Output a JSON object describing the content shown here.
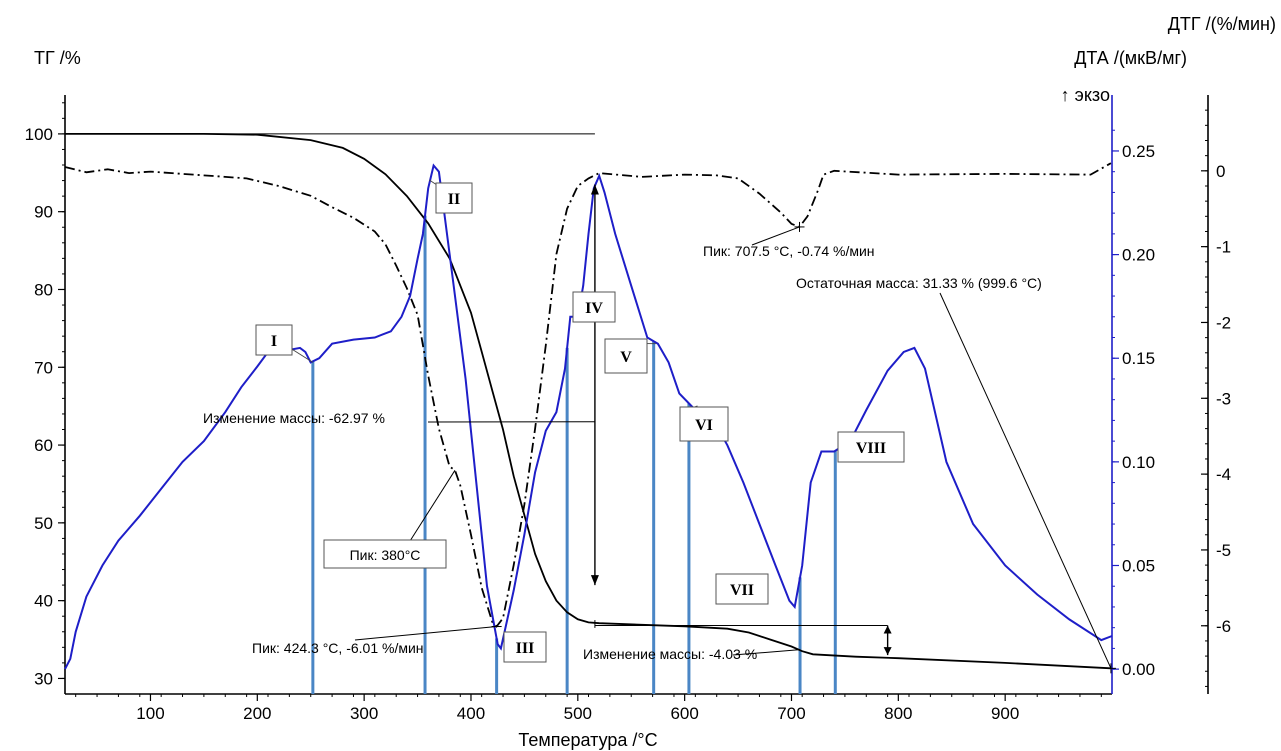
{
  "chart_data": {
    "type": "line",
    "xlabel": "Температура /°C",
    "x_ticks": [
      100,
      200,
      300,
      400,
      500,
      600,
      700,
      800,
      900
    ],
    "xlim": [
      20,
      1000
    ],
    "axes": {
      "tg": {
        "label": "ТГ /%",
        "ticks": [
          30,
          40,
          50,
          60,
          70,
          80,
          90,
          100
        ],
        "range": [
          28,
          105
        ]
      },
      "dta": {
        "label": "ДТА /(мкВ/мг)",
        "exo_label": "↑ экзо",
        "ticks": [
          "0.00",
          "0.05",
          "0.10",
          "0.15",
          "0.20",
          "0.25"
        ],
        "range": [
          -0.012,
          0.277
        ]
      },
      "dtg": {
        "label": "ДТГ /(%/мин)",
        "ticks": [
          0,
          -1,
          -2,
          -3,
          -4,
          -5,
          -6
        ],
        "range": [
          -6.9,
          1.0
        ]
      }
    },
    "colors": {
      "tg": "#000000",
      "dtg": "#000000",
      "dta": "#1e1ec8",
      "markers": "#4a86c5"
    },
    "series": [
      {
        "key": "tg",
        "style": "solid",
        "points": [
          [
            20,
            100
          ],
          [
            150,
            100
          ],
          [
            200,
            99.9
          ],
          [
            250,
            99.2
          ],
          [
            280,
            98.2
          ],
          [
            300,
            96.8
          ],
          [
            320,
            94.8
          ],
          [
            340,
            92
          ],
          [
            360,
            88.5
          ],
          [
            380,
            84
          ],
          [
            400,
            77
          ],
          [
            410,
            72
          ],
          [
            420,
            67
          ],
          [
            430,
            62
          ],
          [
            440,
            56
          ],
          [
            450,
            51
          ],
          [
            460,
            46
          ],
          [
            470,
            42.5
          ],
          [
            480,
            40
          ],
          [
            490,
            38.5
          ],
          [
            500,
            37.6
          ],
          [
            510,
            37.2
          ],
          [
            520,
            37.1
          ],
          [
            560,
            36.9
          ],
          [
            600,
            36.7
          ],
          [
            640,
            36.4
          ],
          [
            660,
            35.9
          ],
          [
            680,
            35.0
          ],
          [
            700,
            34.1
          ],
          [
            710,
            33.5
          ],
          [
            720,
            33.1
          ],
          [
            760,
            32.8
          ],
          [
            800,
            32.6
          ],
          [
            900,
            32.0
          ],
          [
            999,
            31.3
          ]
        ]
      },
      {
        "key": "dtg",
        "style": "dashdot",
        "points": [
          [
            20,
            0.05
          ],
          [
            40,
            -0.02
          ],
          [
            60,
            0.02
          ],
          [
            80,
            -0.03
          ],
          [
            100,
            -0.01
          ],
          [
            130,
            -0.04
          ],
          [
            160,
            -0.07
          ],
          [
            190,
            -0.1
          ],
          [
            220,
            -0.2
          ],
          [
            250,
            -0.33
          ],
          [
            270,
            -0.48
          ],
          [
            290,
            -0.62
          ],
          [
            310,
            -0.8
          ],
          [
            320,
            -0.97
          ],
          [
            330,
            -1.25
          ],
          [
            340,
            -1.55
          ],
          [
            350,
            -1.9
          ],
          [
            360,
            -2.7
          ],
          [
            370,
            -3.4
          ],
          [
            380,
            -3.9
          ],
          [
            385,
            -3.95
          ],
          [
            390,
            -4.15
          ],
          [
            400,
            -4.8
          ],
          [
            410,
            -5.5
          ],
          [
            420,
            -5.95
          ],
          [
            424,
            -6.01
          ],
          [
            430,
            -5.9
          ],
          [
            440,
            -5.2
          ],
          [
            450,
            -4.4
          ],
          [
            460,
            -3.4
          ],
          [
            470,
            -2.3
          ],
          [
            480,
            -1.1
          ],
          [
            490,
            -0.5
          ],
          [
            500,
            -0.2
          ],
          [
            510,
            -0.1
          ],
          [
            520,
            -0.03
          ],
          [
            560,
            -0.08
          ],
          [
            600,
            -0.05
          ],
          [
            630,
            -0.06
          ],
          [
            650,
            -0.1
          ],
          [
            670,
            -0.3
          ],
          [
            690,
            -0.55
          ],
          [
            700,
            -0.7
          ],
          [
            707.5,
            -0.74
          ],
          [
            715,
            -0.6
          ],
          [
            725,
            -0.25
          ],
          [
            730,
            -0.05
          ],
          [
            740,
            0.0
          ],
          [
            800,
            -0.05
          ],
          [
            900,
            -0.04
          ],
          [
            980,
            -0.05
          ],
          [
            999,
            0.1
          ]
        ]
      },
      {
        "key": "dta",
        "style": "solid",
        "points": [
          [
            20,
            0.0
          ],
          [
            25,
            0.005
          ],
          [
            30,
            0.018
          ],
          [
            40,
            0.035
          ],
          [
            55,
            0.05
          ],
          [
            70,
            0.062
          ],
          [
            90,
            0.074
          ],
          [
            110,
            0.087
          ],
          [
            130,
            0.1
          ],
          [
            150,
            0.11
          ],
          [
            170,
            0.124
          ],
          [
            185,
            0.136
          ],
          [
            200,
            0.146
          ],
          [
            210,
            0.153
          ],
          [
            218,
            0.155
          ],
          [
            230,
            0.154
          ],
          [
            240,
            0.155
          ],
          [
            245,
            0.153
          ],
          [
            250,
            0.148
          ],
          [
            258,
            0.15
          ],
          [
            270,
            0.157
          ],
          [
            290,
            0.159
          ],
          [
            310,
            0.16
          ],
          [
            325,
            0.163
          ],
          [
            335,
            0.17
          ],
          [
            343,
            0.18
          ],
          [
            350,
            0.198
          ],
          [
            355,
            0.21
          ],
          [
            360,
            0.232
          ],
          [
            365,
            0.243
          ],
          [
            370,
            0.24
          ],
          [
            375,
            0.22
          ],
          [
            385,
            0.18
          ],
          [
            395,
            0.14
          ],
          [
            405,
            0.09
          ],
          [
            415,
            0.04
          ],
          [
            425,
            0.012
          ],
          [
            428,
            0.01
          ],
          [
            440,
            0.038
          ],
          [
            450,
            0.065
          ],
          [
            460,
            0.095
          ],
          [
            470,
            0.115
          ],
          [
            480,
            0.124
          ],
          [
            488,
            0.145
          ],
          [
            493,
            0.17
          ],
          [
            500,
            0.17
          ],
          [
            505,
            0.185
          ],
          [
            510,
            0.21
          ],
          [
            515,
            0.232
          ],
          [
            520,
            0.238
          ],
          [
            525,
            0.23
          ],
          [
            535,
            0.21
          ],
          [
            550,
            0.185
          ],
          [
            565,
            0.16
          ],
          [
            575,
            0.157
          ],
          [
            585,
            0.148
          ],
          [
            595,
            0.133
          ],
          [
            610,
            0.125
          ],
          [
            625,
            0.122
          ],
          [
            640,
            0.108
          ],
          [
            655,
            0.09
          ],
          [
            670,
            0.07
          ],
          [
            685,
            0.05
          ],
          [
            698,
            0.033
          ],
          [
            703,
            0.03
          ],
          [
            710,
            0.05
          ],
          [
            718,
            0.09
          ],
          [
            728,
            0.105
          ],
          [
            740,
            0.105
          ],
          [
            755,
            0.11
          ],
          [
            770,
            0.125
          ],
          [
            790,
            0.144
          ],
          [
            805,
            0.153
          ],
          [
            815,
            0.155
          ],
          [
            825,
            0.145
          ],
          [
            845,
            0.1
          ],
          [
            870,
            0.07
          ],
          [
            900,
            0.05
          ],
          [
            930,
            0.036
          ],
          [
            960,
            0.024
          ],
          [
            990,
            0.014
          ],
          [
            1000,
            0.016
          ]
        ]
      }
    ],
    "markers": [
      {
        "label": "I",
        "x": 252
      },
      {
        "label": "II",
        "x": 357
      },
      {
        "label": "III",
        "x": 424
      },
      {
        "label": "IV",
        "x": 490
      },
      {
        "label": "V",
        "x": 571
      },
      {
        "label": "VI",
        "x": 604
      },
      {
        "label": "VII",
        "x": 708
      },
      {
        "label": "VIII",
        "x": 741
      }
    ],
    "annotations": {
      "mass_change_1": "Изменение массы: -62.97 %",
      "mass_change_2": "Изменение массы: -4.03 %",
      "peak_380": "Пик: 380°C",
      "peak_424": "Пик: 424.3 °C, -6.01 %/мин",
      "peak_707": "Пик: 707.5 °C, -0.74 %/мин",
      "residual": "Остаточная масса: 31.33 % (999.6 °C)"
    }
  }
}
